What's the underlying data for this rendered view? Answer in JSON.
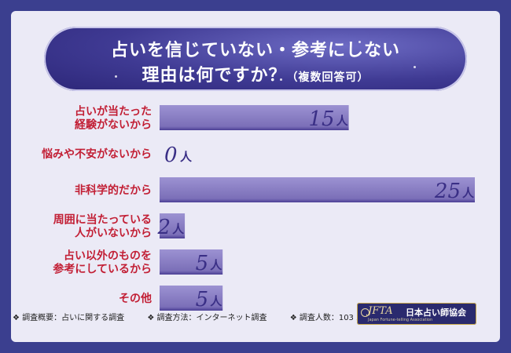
{
  "title": {
    "line1": "占いを信じていない・参考にしない",
    "line2": "理由は何ですか？",
    "line2_sub": "（複数回答可）"
  },
  "chart_data": {
    "type": "bar",
    "orientation": "horizontal",
    "categories": [
      [
        "占いが当たった",
        "経験がないから"
      ],
      [
        "悩みや不安がないから"
      ],
      [
        "非科学的だから"
      ],
      [
        "周囲に当たっている",
        "人がいないから"
      ],
      [
        "占い以外のものを",
        "参考にしているから"
      ],
      [
        "その他"
      ]
    ],
    "values": [
      15,
      0,
      25,
      2,
      5,
      5
    ],
    "unit": "人",
    "xlim": [
      0,
      25
    ],
    "grid": false,
    "bar_color": "#7b6fb8",
    "label_color": "#c21f35"
  },
  "footer": {
    "item1": "❖ 調査概要：占いに関する調査",
    "item2": "❖ 調査方法：インターネット調査",
    "item3": "❖ 調査人数：103 人"
  },
  "logo": {
    "abbr": "JFTA",
    "name": "日本占い師協会",
    "english": "Japan Fortune-telling Association"
  }
}
